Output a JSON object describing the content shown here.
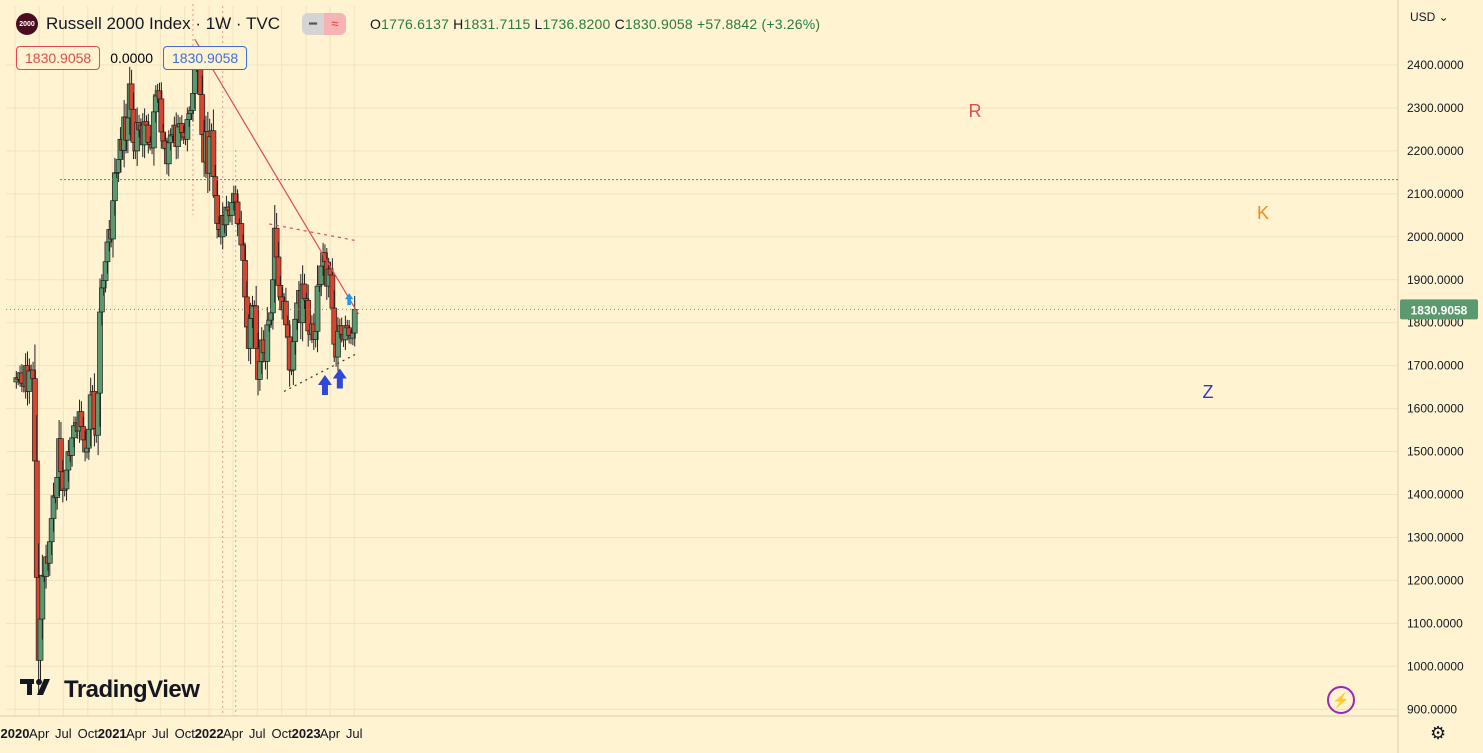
{
  "header": {
    "logo_text": "2000",
    "title": "Russell 2000 Index · 1W · TVC",
    "ohlc": {
      "o_label": "O",
      "o": "1776.6137",
      "h_label": "H",
      "h": "1831.7115",
      "l_label": "L",
      "l": "1736.8200",
      "c_label": "C",
      "c": "1830.9058",
      "change": "+57.8842 (+3.26%)"
    },
    "price_box_1": "1830.9058",
    "spread": "0.0000",
    "price_box_2": "1830.9058"
  },
  "currency": "USD",
  "brand": "TradingView",
  "colors": {
    "up": "#5b9a6e",
    "down": "#d6452f",
    "accent": "#ef5350",
    "bg": "#fff3d1"
  },
  "chart_data": {
    "type": "candlestick",
    "title": "Russell 2000 Index · 1W · TVC",
    "y_range": [
      880,
      2460
    ],
    "y_ticks": [
      "2400.0000",
      "2300.0000",
      "2200.0000",
      "2100.0000",
      "2000.0000",
      "1900.0000",
      "1800.0000",
      "1700.0000",
      "1600.0000",
      "1500.0000",
      "1400.0000",
      "1300.0000",
      "1200.0000",
      "1100.0000",
      "1000.0000",
      "900.0000"
    ],
    "x_ticks": [
      "2020",
      "Apr",
      "Jul",
      "Oct",
      "2021",
      "Apr",
      "Jul",
      "Oct",
      "2022",
      "Apr",
      "Jul",
      "Oct",
      "2023",
      "Apr",
      "Jul"
    ],
    "x_tick_dates": [
      "2020-01-01",
      "2020-04-01",
      "2020-07-01",
      "2020-10-01",
      "2021-01-01",
      "2021-04-01",
      "2021-07-01",
      "2021-10-01",
      "2022-01-01",
      "2022-04-01",
      "2022-07-01",
      "2022-10-01",
      "2023-01-01",
      "2023-04-01",
      "2023-07-01"
    ],
    "last_price": "1830.9058",
    "annotations": [
      {
        "label": "R",
        "type": "resistance trendline",
        "from": [
          "2021-11-08",
          2460
        ],
        "to": [
          "2023-07-17",
          1820
        ]
      },
      {
        "label": "K",
        "type": "dotted line",
        "from": [
          "2022-08-15",
          2030
        ],
        "to": [
          "2023-07-17",
          1990
        ]
      },
      {
        "label": "Z",
        "type": "dotted support",
        "from": [
          "2022-10-10",
          1640
        ],
        "to": [
          "2023-07-17",
          1730
        ]
      },
      {
        "type": "horizontal dotted",
        "y": 2133
      },
      {
        "type": "arrow up",
        "date": "2023-03-13",
        "y": 1655
      },
      {
        "type": "arrow up",
        "date": "2023-05-08",
        "y": 1670
      },
      {
        "type": "arrow up small",
        "date": "2023-06-12",
        "y": 1855
      }
    ],
    "candles_weekly_close": [
      1672,
      1668,
      1683,
      1659,
      1652,
      1700,
      1640,
      1688,
      1690,
      1670,
      1478,
      1207,
      1014,
      1110,
      1212,
      1209,
      1255,
      1240,
      1290,
      1344,
      1397,
      1393,
      1440,
      1530,
      1453,
      1409,
      1413,
      1457,
      1500,
      1491,
      1532,
      1560,
      1567,
      1548,
      1593,
      1558,
      1527,
      1499,
      1508,
      1552,
      1632,
      1640,
      1554,
      1538,
      1636,
      1825,
      1881,
      1898,
      1942,
      1988,
      2017,
      1995,
      2084,
      2149,
      2150,
      2180,
      2227,
      2201,
      2279,
      2225,
      2277,
      2356,
      2297,
      2220,
      2200,
      2266,
      2249,
      2260,
      2214,
      2268,
      2260,
      2220,
      2215,
      2207,
      2291,
      2328,
      2340,
      2321,
      2244,
      2223,
      2206,
      2170,
      2219,
      2235,
      2238,
      2260,
      2210,
      2256,
      2264,
      2243,
      2232,
      2227,
      2273,
      2287,
      2294,
      2334,
      2401,
      2416,
      2390,
      2331,
      2238,
      2174,
      2245,
      2148,
      2233,
      2247,
      2140,
      2096,
      2031,
      2017,
      2000,
      2050,
      2028,
      2069,
      2062,
      2050,
      2080,
      2100,
      2081,
      2031,
      2031,
      1981,
      1945,
      1860,
      1790,
      1740,
      1810,
      1840,
      1839,
      1740,
      1668,
      1710,
      1760,
      1730,
      1710,
      1795,
      1806,
      1823,
      1900,
      2020,
      1953,
      1887,
      1860,
      1830,
      1850,
      1795,
      1767,
      1690,
      1690,
      1756,
      1808,
      1846,
      1875,
      1800,
      1890,
      1856,
      1852,
      1781,
      1773,
      1797,
      1761,
      1780,
      1885,
      1889,
      1932,
      1963,
      1942,
      1885,
      1925,
      1911,
      1834,
      1750,
      1720,
      1780,
      1793,
      1773,
      1760,
      1793,
      1788,
      1770,
      1764,
      1776,
      1831
    ]
  }
}
